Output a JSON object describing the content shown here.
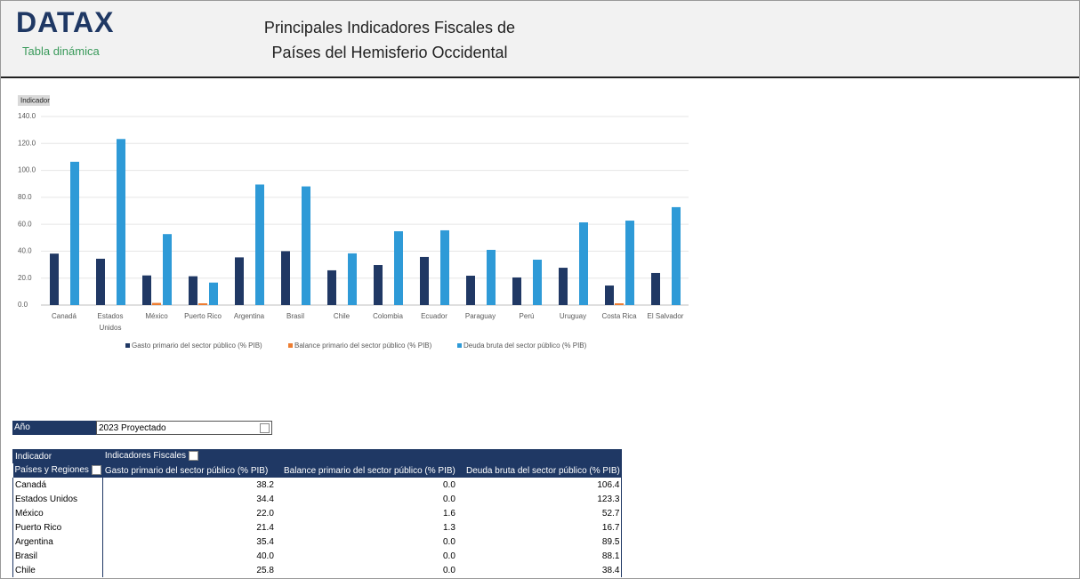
{
  "header": {
    "logo": "DATAX",
    "subtitle": "Tabla dinámica",
    "title_lines": [
      "Principales Indicadores Fiscales de",
      "Países del Hemisferio Occidental"
    ]
  },
  "chart_data": {
    "type": "bar",
    "field_button": "Indicador",
    "categories": [
      "Canadá",
      "Estados Unidos",
      "México",
      "Puerto Rico",
      "Argentina",
      "Brasil",
      "Chile",
      "Colombia",
      "Ecuador",
      "Paraguay",
      "Perú",
      "Uruguay",
      "Costa Rica",
      "El Salvador"
    ],
    "series": [
      {
        "name": "Gasto primario del sector público (% PIB)",
        "color": "#203864",
        "values": [
          38.2,
          34.4,
          22.0,
          21.4,
          35.4,
          40.0,
          25.8,
          29.7,
          35.7,
          21.8,
          20.5,
          27.7,
          14.5,
          23.8
        ]
      },
      {
        "name": "Balance primario del sector público (% PIB)",
        "color": "#ed7d31",
        "values": [
          0.0,
          0.0,
          1.6,
          1.3,
          0.0,
          0.0,
          0.0,
          0.0,
          0.0,
          0.0,
          0.0,
          0.0,
          1.3,
          0.0
        ]
      },
      {
        "name": "Deuda bruta del sector público (% PIB)",
        "color": "#2e9ad7",
        "values": [
          106.4,
          123.3,
          52.7,
          16.7,
          89.5,
          88.1,
          38.4,
          54.8,
          55.5,
          41.0,
          33.7,
          61.4,
          62.7,
          72.7
        ]
      }
    ],
    "ylim": [
      0,
      140
    ],
    "yticks": [
      {
        "value": 0,
        "label": "0.0"
      },
      {
        "value": 20,
        "label": "20.0"
      },
      {
        "value": 40,
        "label": "40.0"
      },
      {
        "value": 60,
        "label": "60.0"
      },
      {
        "value": 80,
        "label": "80.0"
      },
      {
        "value": 100,
        "label": "100.0"
      },
      {
        "value": 120,
        "label": "120.0"
      },
      {
        "value": 140,
        "label": "140.0"
      }
    ],
    "grid": true,
    "legend": "bottom"
  },
  "filter": {
    "label": "Año",
    "value": "2023 Proyectado"
  },
  "table": {
    "corner": "Indicador",
    "column_field": "Indicadores Fiscales",
    "row_field": "Países y Regiones",
    "columns": [
      "Gasto primario del sector público (% PIB)",
      "Balance primario del sector público (% PIB)",
      "Deuda bruta del sector público (% PIB)"
    ],
    "rows": [
      [
        "Canadá",
        "38.2",
        "0.0",
        "106.4"
      ],
      [
        "Estados Unidos",
        "34.4",
        "0.0",
        "123.3"
      ],
      [
        "México",
        "22.0",
        "1.6",
        "52.7"
      ],
      [
        "Puerto Rico",
        "21.4",
        "1.3",
        "16.7"
      ],
      [
        "Argentina",
        "35.4",
        "0.0",
        "89.5"
      ],
      [
        "Brasil",
        "40.0",
        "0.0",
        "88.1"
      ],
      [
        "Chile",
        "25.8",
        "0.0",
        "38.4"
      ]
    ]
  }
}
